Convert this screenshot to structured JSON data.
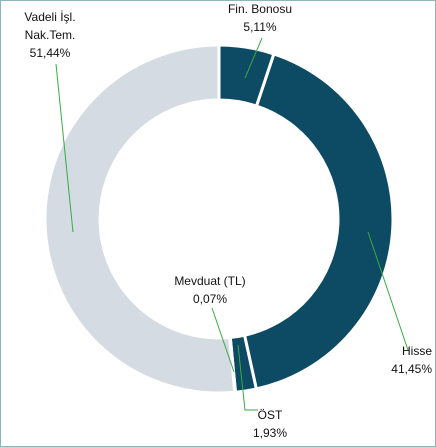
{
  "chart_data": {
    "type": "donut",
    "categories": [
      "Fin. Bonosu",
      "Hisse",
      "ÖST",
      "Mevduat (TL)",
      "Vadeli İşl.\nNak.Tem."
    ],
    "values": [
      5.11,
      41.45,
      1.93,
      0.07,
      51.44
    ],
    "value_labels": [
      "5,11%",
      "41,45%",
      "1,93%",
      "0,07%",
      "51,44%"
    ],
    "colors": [
      "#0d4a63",
      "#0d4a63",
      "#0d4a63",
      "#0d4a63",
      "#d5dbe3"
    ]
  }
}
